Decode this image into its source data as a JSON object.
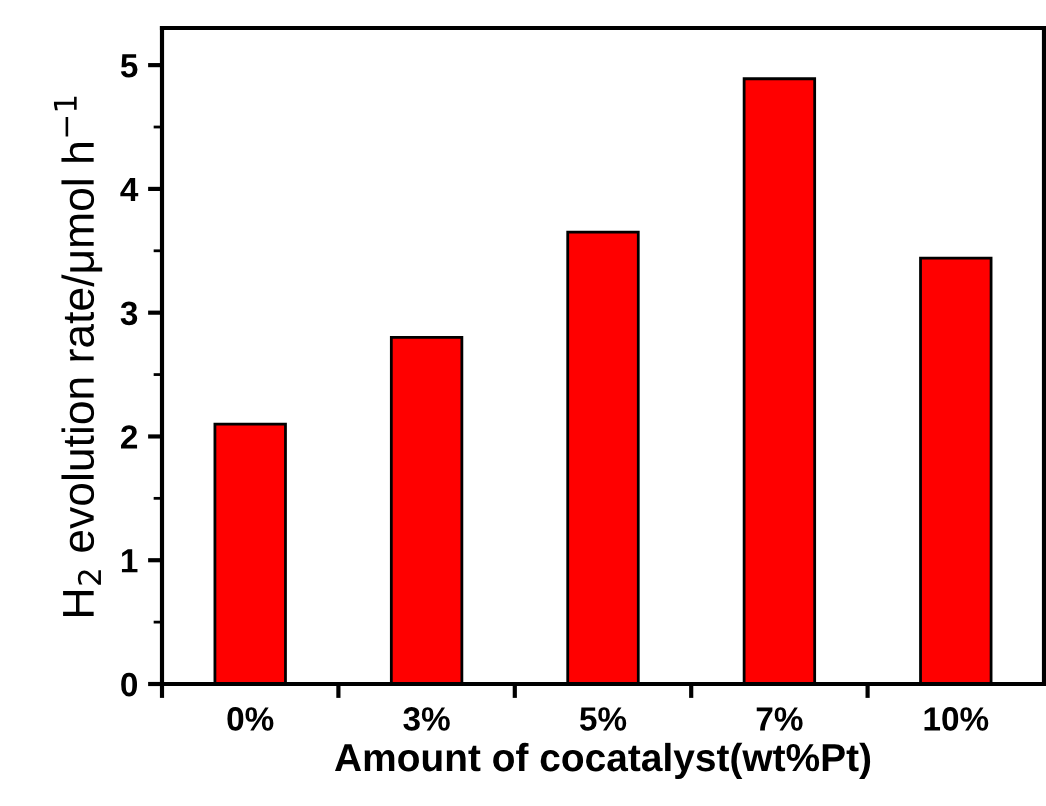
{
  "chart_data": {
    "type": "bar",
    "xlabel": "Amount of cocatalyst(wt%Pt)",
    "ylabel": "H$_{2}$ evolution rate/μmol h$^{−1}$",
    "categories": [
      "0%",
      "3%",
      "5%",
      "7%",
      "10%"
    ],
    "values": [
      2.1,
      2.8,
      3.65,
      4.89,
      3.44
    ],
    "color": "#ff0000",
    "ylim": [
      0,
      5.3
    ],
    "yticks": [
      0,
      1,
      2,
      3,
      4,
      5
    ],
    "grid": false,
    "legend": false
  }
}
